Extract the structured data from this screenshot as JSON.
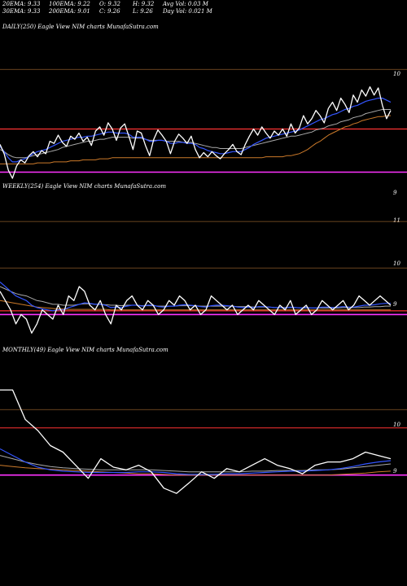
{
  "header": {
    "r1c1": "20EMA: 9.33",
    "r1c2": "100EMA: 9.22",
    "r1c3": "O: 9.32",
    "r1c4": "H: 9.32",
    "r1c5": "Avg Vol: 0.03 M",
    "r2c1": "30EMA: 9.33",
    "r2c2": "200EMA: 9.01",
    "r2c3": "C: 9.26",
    "r2c4": "L: 9.26",
    "r2c5": "Day Vol: 0.021 M"
  },
  "panels": {
    "daily": {
      "label": "DAILY(250) Eagle   View  NIM charts MunafaSutra.com",
      "ticks": [
        "10",
        "9"
      ]
    },
    "weekly": {
      "label": "WEEKLY(254) Eagle   View  NIM charts MunafaSutra.com",
      "ticks": [
        "11",
        "10",
        "9"
      ]
    },
    "monthly": {
      "label": "MONTHLY(49) Eagle   View  NIM charts MunafaSutra.com",
      "ticks": [
        "10",
        "9"
      ]
    }
  },
  "colors": {
    "price": "#ffffff",
    "ema_fast": "#3355ff",
    "ema_mid": "#aaaaaa",
    "ema_slow": "#cc7a2a",
    "level_magenta": "#ff33ff",
    "level_red": "#ff3333",
    "grid": "#8a5a2a"
  },
  "chart_data": [
    {
      "type": "line",
      "name": "daily",
      "ylim": [
        8.6,
        10.2
      ],
      "levels": [
        10,
        9.42,
        9
      ],
      "series": [
        {
          "name": "price",
          "values": [
            9.27,
            9.18,
            9.02,
            8.94,
            9.06,
            9.12,
            9.09,
            9.16,
            9.2,
            9.15,
            9.21,
            9.18,
            9.3,
            9.28,
            9.36,
            9.29,
            9.25,
            9.35,
            9.32,
            9.38,
            9.3,
            9.34,
            9.26,
            9.4,
            9.44,
            9.36,
            9.48,
            9.42,
            9.31,
            9.43,
            9.47,
            9.35,
            9.22,
            9.4,
            9.38,
            9.26,
            9.16,
            9.32,
            9.41,
            9.36,
            9.3,
            9.18,
            9.3,
            9.37,
            9.33,
            9.28,
            9.35,
            9.22,
            9.14,
            9.19,
            9.15,
            9.2,
            9.16,
            9.13,
            9.18,
            9.22,
            9.27,
            9.2,
            9.17,
            9.27,
            9.35,
            9.42,
            9.36,
            9.44,
            9.38,
            9.33,
            9.4,
            9.36,
            9.42,
            9.35,
            9.47,
            9.38,
            9.43,
            9.55,
            9.47,
            9.52,
            9.6,
            9.55,
            9.48,
            9.62,
            9.68,
            9.6,
            9.72,
            9.66,
            9.58,
            9.75,
            9.68,
            9.8,
            9.74,
            9.83,
            9.75,
            9.82,
            9.65,
            9.52,
            9.6
          ]
        },
        {
          "name": "ema_fast",
          "values": [
            9.25,
            9.2,
            9.14,
            9.1,
            9.1,
            9.12,
            9.13,
            9.15,
            9.18,
            9.2,
            9.21,
            9.22,
            9.24,
            9.26,
            9.28,
            9.3,
            9.31,
            9.32,
            9.33,
            9.34,
            9.34,
            9.35,
            9.35,
            9.36,
            9.37,
            9.38,
            9.39,
            9.39,
            9.38,
            9.38,
            9.38,
            9.37,
            9.34,
            9.34,
            9.34,
            9.32,
            9.3,
            9.3,
            9.31,
            9.31,
            9.3,
            9.28,
            9.28,
            9.29,
            9.29,
            9.28,
            9.28,
            9.27,
            9.24,
            9.23,
            9.21,
            9.2,
            9.19,
            9.18,
            9.18,
            9.19,
            9.2,
            9.2,
            9.2,
            9.22,
            9.24,
            9.27,
            9.29,
            9.31,
            9.33,
            9.34,
            9.35,
            9.36,
            9.37,
            9.38,
            9.39,
            9.4,
            9.41,
            9.43,
            9.45,
            9.47,
            9.49,
            9.51,
            9.52,
            9.54,
            9.56,
            9.57,
            9.59,
            9.61,
            9.62,
            9.64,
            9.65,
            9.67,
            9.69,
            9.7,
            9.71,
            9.72,
            9.72,
            9.7,
            9.68
          ]
        },
        {
          "name": "ema_mid",
          "values": [
            9.22,
            9.2,
            9.17,
            9.15,
            9.14,
            9.14,
            9.14,
            9.15,
            9.16,
            9.17,
            9.18,
            9.19,
            9.2,
            9.21,
            9.22,
            9.24,
            9.25,
            9.26,
            9.27,
            9.28,
            9.29,
            9.3,
            9.3,
            9.31,
            9.32,
            9.32,
            9.33,
            9.34,
            9.34,
            9.34,
            9.34,
            9.34,
            9.33,
            9.33,
            9.33,
            9.32,
            9.31,
            9.31,
            9.31,
            9.31,
            9.3,
            9.3,
            9.3,
            9.3,
            9.29,
            9.29,
            9.29,
            9.28,
            9.27,
            9.26,
            9.25,
            9.24,
            9.24,
            9.23,
            9.23,
            9.23,
            9.23,
            9.23,
            9.23,
            9.24,
            9.25,
            9.26,
            9.27,
            9.28,
            9.29,
            9.3,
            9.31,
            9.32,
            9.33,
            9.34,
            9.35,
            9.35,
            9.36,
            9.37,
            9.38,
            9.39,
            9.41,
            9.42,
            9.43,
            9.45,
            9.46,
            9.47,
            9.49,
            9.5,
            9.51,
            9.53,
            9.54,
            9.55,
            9.57,
            9.58,
            9.59,
            9.6,
            9.61,
            9.61,
            9.61
          ]
        },
        {
          "name": "ema_slow",
          "values": [
            9.08,
            9.08,
            9.08,
            9.08,
            9.08,
            9.08,
            9.08,
            9.08,
            9.08,
            9.09,
            9.09,
            9.09,
            9.09,
            9.1,
            9.1,
            9.1,
            9.1,
            9.11,
            9.11,
            9.11,
            9.12,
            9.12,
            9.12,
            9.12,
            9.13,
            9.13,
            9.13,
            9.14,
            9.14,
            9.14,
            9.14,
            9.14,
            9.14,
            9.14,
            9.14,
            9.14,
            9.14,
            9.14,
            9.14,
            9.14,
            9.14,
            9.14,
            9.14,
            9.14,
            9.14,
            9.14,
            9.14,
            9.14,
            9.14,
            9.14,
            9.14,
            9.14,
            9.14,
            9.14,
            9.14,
            9.14,
            9.14,
            9.14,
            9.14,
            9.14,
            9.14,
            9.14,
            9.14,
            9.14,
            9.15,
            9.15,
            9.15,
            9.15,
            9.15,
            9.16,
            9.16,
            9.17,
            9.18,
            9.2,
            9.22,
            9.25,
            9.28,
            9.3,
            9.33,
            9.36,
            9.38,
            9.4,
            9.42,
            9.44,
            9.45,
            9.47,
            9.48,
            9.5,
            9.51,
            9.52,
            9.53,
            9.54,
            9.54,
            9.55,
            9.55
          ]
        }
      ]
    },
    {
      "type": "line",
      "name": "weekly",
      "ylim": [
        8.5,
        11.3
      ],
      "levels": [
        11,
        10,
        9.08,
        9
      ],
      "series": [
        {
          "name": "price",
          "values": [
            9.5,
            9.3,
            9.1,
            8.8,
            9.0,
            8.9,
            8.6,
            8.8,
            9.1,
            9.0,
            8.9,
            9.2,
            9.0,
            9.4,
            9.3,
            9.6,
            9.5,
            9.2,
            9.1,
            9.3,
            9.0,
            8.8,
            9.2,
            9.1,
            9.3,
            9.4,
            9.2,
            9.1,
            9.3,
            9.2,
            9.0,
            9.1,
            9.3,
            9.2,
            9.4,
            9.3,
            9.1,
            9.2,
            9.0,
            9.1,
            9.4,
            9.3,
            9.2,
            9.1,
            9.2,
            9.0,
            9.1,
            9.2,
            9.1,
            9.3,
            9.2,
            9.1,
            9.0,
            9.2,
            9.1,
            9.3,
            9.0,
            9.1,
            9.2,
            9.0,
            9.1,
            9.3,
            9.2,
            9.1,
            9.2,
            9.3,
            9.1,
            9.2,
            9.4,
            9.3,
            9.2,
            9.3,
            9.4,
            9.3,
            9.2
          ]
        },
        {
          "name": "ema_fast",
          "values": [
            9.7,
            9.6,
            9.5,
            9.4,
            9.35,
            9.3,
            9.2,
            9.15,
            9.12,
            9.1,
            9.08,
            9.1,
            9.1,
            9.15,
            9.18,
            9.22,
            9.25,
            9.24,
            9.22,
            9.22,
            9.2,
            9.15,
            9.16,
            9.15,
            9.18,
            9.2,
            9.2,
            9.18,
            9.2,
            9.2,
            9.17,
            9.16,
            9.18,
            9.18,
            9.2,
            9.21,
            9.2,
            9.19,
            9.17,
            9.16,
            9.19,
            9.2,
            9.2,
            9.19,
            9.18,
            9.16,
            9.15,
            9.16,
            9.15,
            9.17,
            9.17,
            9.16,
            9.15,
            9.15,
            9.14,
            9.16,
            9.15,
            9.14,
            9.15,
            9.14,
            9.14,
            9.16,
            9.16,
            9.15,
            9.16,
            9.17,
            9.16,
            9.16,
            9.18,
            9.2,
            9.2,
            9.21,
            9.23,
            9.24,
            9.24
          ]
        },
        {
          "name": "ema_mid",
          "values": [
            9.6,
            9.55,
            9.5,
            9.45,
            9.42,
            9.4,
            9.35,
            9.3,
            9.28,
            9.25,
            9.22,
            9.22,
            9.2,
            9.2,
            9.2,
            9.22,
            9.23,
            9.23,
            9.22,
            9.22,
            9.21,
            9.2,
            9.2,
            9.19,
            9.2,
            9.2,
            9.2,
            9.19,
            9.19,
            9.19,
            9.18,
            9.18,
            9.18,
            9.18,
            9.19,
            9.19,
            9.19,
            9.19,
            9.18,
            9.18,
            9.18,
            9.18,
            9.18,
            9.18,
            9.18,
            9.17,
            9.17,
            9.17,
            9.16,
            9.16,
            9.16,
            9.16,
            9.15,
            9.15,
            9.15,
            9.15,
            9.15,
            9.14,
            9.14,
            9.14,
            9.14,
            9.14,
            9.14,
            9.14,
            9.14,
            9.15,
            9.15,
            9.15,
            9.15,
            9.16,
            9.16,
            9.17,
            9.17,
            9.18,
            9.18
          ]
        },
        {
          "name": "ema_slow",
          "values": [
            9.3,
            9.28,
            9.26,
            9.24,
            9.22,
            9.2,
            9.18,
            9.16,
            9.15,
            9.14,
            9.13,
            9.12,
            9.12,
            9.11,
            9.11,
            9.11,
            9.11,
            9.11,
            9.11,
            9.11,
            9.11,
            9.1,
            9.1,
            9.1,
            9.1,
            9.1,
            9.1,
            9.1,
            9.1,
            9.1,
            9.1,
            9.1,
            9.1,
            9.1,
            9.1,
            9.1,
            9.1,
            9.1,
            9.1,
            9.1,
            9.1,
            9.1,
            9.1,
            9.1,
            9.1,
            9.1,
            9.1,
            9.1,
            9.1,
            9.1,
            9.1,
            9.1,
            9.1,
            9.1,
            9.1,
            9.1,
            9.1,
            9.1,
            9.1,
            9.1,
            9.1,
            9.1,
            9.1,
            9.1,
            9.1,
            9.1,
            9.1,
            9.1,
            9.1,
            9.1,
            9.1,
            9.1,
            9.1,
            9.1,
            9.1
          ]
        }
      ]
    },
    {
      "type": "line",
      "name": "monthly",
      "ylim": [
        8.3,
        10.6
      ],
      "levels": [
        10,
        9.72,
        9
      ],
      "series": [
        {
          "name": "price",
          "values": [
            10.3,
            10.3,
            9.85,
            9.68,
            9.45,
            9.35,
            9.15,
            8.95,
            9.25,
            9.12,
            9.08,
            9.15,
            9.05,
            8.8,
            8.72,
            8.88,
            9.05,
            8.95,
            9.1,
            9.05,
            9.15,
            9.25,
            9.15,
            9.1,
            9.02,
            9.15,
            9.2,
            9.2,
            9.25,
            9.35,
            9.3,
            9.25
          ]
        },
        {
          "name": "ema_fast",
          "values": [
            9.4,
            9.3,
            9.2,
            9.12,
            9.08,
            9.06,
            9.05,
            9.04,
            9.04,
            9.04,
            9.04,
            9.05,
            9.05,
            9.04,
            9.02,
            9.01,
            9.01,
            9.01,
            9.02,
            9.02,
            9.03,
            9.04,
            9.05,
            9.06,
            9.06,
            9.07,
            9.08,
            9.1,
            9.13,
            9.17,
            9.2,
            9.22
          ]
        },
        {
          "name": "ema_mid",
          "values": [
            9.3,
            9.25,
            9.2,
            9.16,
            9.13,
            9.11,
            9.1,
            9.09,
            9.08,
            9.08,
            9.08,
            9.08,
            9.08,
            9.07,
            9.06,
            9.05,
            9.05,
            9.05,
            9.05,
            9.05,
            9.06,
            9.06,
            9.07,
            9.07,
            9.07,
            9.08,
            9.08,
            9.09,
            9.11,
            9.13,
            9.15,
            9.17
          ]
        },
        {
          "name": "ema_slow",
          "values": [
            9.15,
            9.13,
            9.11,
            9.1,
            9.09,
            9.08,
            9.07,
            9.06,
            9.05,
            9.04,
            9.03,
            9.02,
            9.02,
            9.01,
            9.0,
            9.0,
            9.0,
            9.0,
            9.0,
            9.0,
            9.0,
            9.0,
            9.0,
            9.0,
            9.0,
            9.0,
            9.0,
            9.01,
            9.02,
            9.03,
            9.05,
            9.06
          ]
        }
      ]
    }
  ]
}
